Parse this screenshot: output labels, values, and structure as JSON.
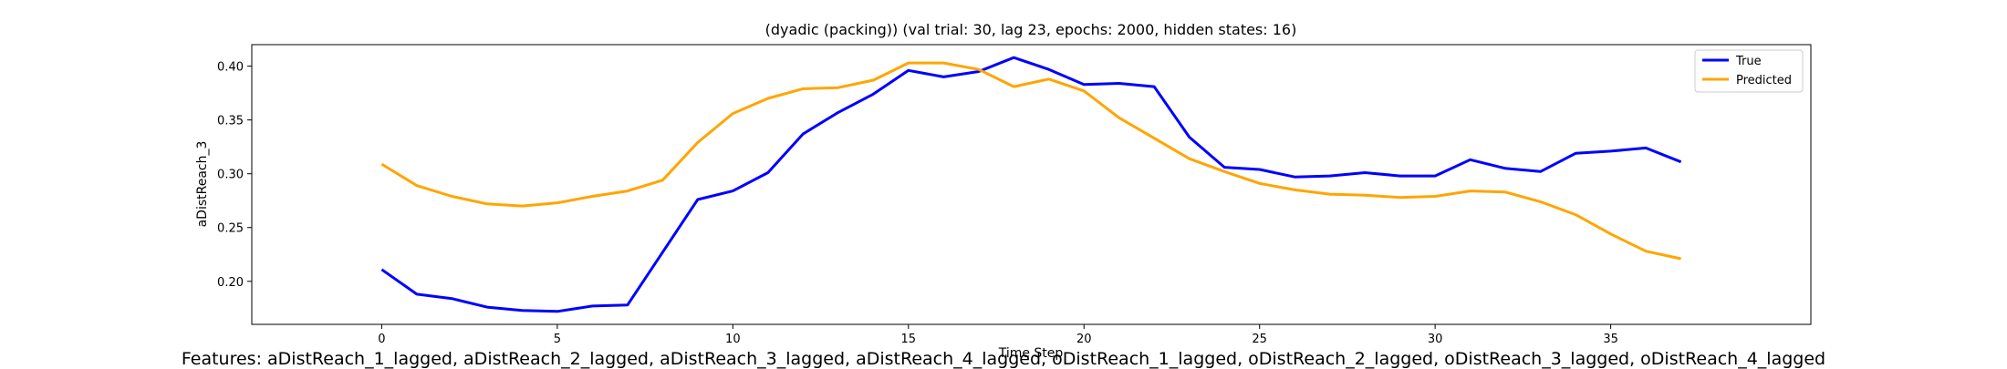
{
  "chart_data": {
    "type": "line",
    "title": "(dyadic (packing)) (val trial: 30, lag 23, epochs: 2000, hidden states: 16)",
    "xlabel": "Time Step",
    "ylabel": "aDistReach_3",
    "xlim": [
      -3.7,
      40.7
    ],
    "ylim": [
      0.16,
      0.42
    ],
    "xticks": [
      0,
      5,
      10,
      15,
      20,
      25,
      30,
      35
    ],
    "yticks": [
      0.2,
      0.25,
      0.3,
      0.35,
      0.4
    ],
    "ytick_labels": [
      "0.20",
      "0.25",
      "0.30",
      "0.35",
      "0.40"
    ],
    "legend_position": "top-right",
    "grid": false,
    "x": [
      0,
      1,
      2,
      3,
      4,
      5,
      6,
      7,
      8,
      9,
      10,
      11,
      12,
      13,
      14,
      15,
      16,
      17,
      18,
      19,
      20,
      21,
      22,
      23,
      24,
      25,
      26,
      27,
      28,
      29,
      30,
      31,
      32,
      33,
      34,
      35,
      36,
      37
    ],
    "series": [
      {
        "name": "True",
        "color": "#0000ff",
        "values": [
          0.211,
          0.188,
          0.184,
          0.176,
          0.173,
          0.172,
          0.177,
          0.178,
          0.227,
          0.276,
          0.284,
          0.301,
          0.337,
          0.357,
          0.374,
          0.396,
          0.39,
          0.395,
          0.408,
          0.397,
          0.383,
          0.384,
          0.381,
          0.334,
          0.306,
          0.304,
          0.297,
          0.298,
          0.301,
          0.298,
          0.298,
          0.313,
          0.305,
          0.302,
          0.319,
          0.321,
          0.324,
          0.311
        ]
      },
      {
        "name": "Predicted",
        "color": "#ffa500",
        "values": [
          0.309,
          0.289,
          0.279,
          0.272,
          0.27,
          0.273,
          0.279,
          0.284,
          0.294,
          0.329,
          0.356,
          0.37,
          0.379,
          0.38,
          0.387,
          0.403,
          0.403,
          0.397,
          0.381,
          0.388,
          0.377,
          0.352,
          0.333,
          0.314,
          0.302,
          0.291,
          0.285,
          0.281,
          0.28,
          0.278,
          0.279,
          0.284,
          0.283,
          0.274,
          0.262,
          0.244,
          0.228,
          0.221
        ]
      }
    ]
  },
  "features_caption": "Features: aDistReach_1_lagged, aDistReach_2_lagged, aDistReach_3_lagged, aDistReach_4_lagged, oDistReach_1_lagged, oDistReach_2_lagged, oDistReach_3_lagged, oDistReach_4_lagged"
}
